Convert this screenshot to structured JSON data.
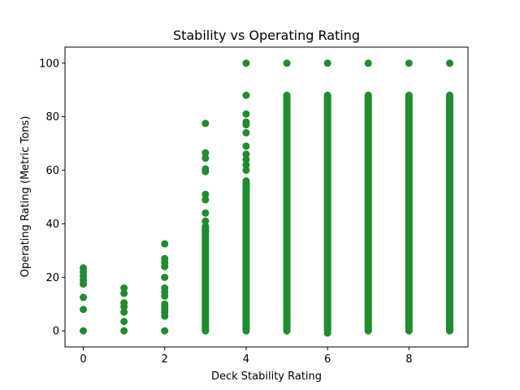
{
  "chart_data": {
    "type": "scatter",
    "title": "Stability vs Operating Rating",
    "xlabel": "Deck Stability Rating",
    "ylabel": "Operating Rating (Metric Tons)",
    "xlim": [
      -0.45,
      9.45
    ],
    "ylim": [
      -6,
      106
    ],
    "x_ticks": [
      0,
      2,
      4,
      6,
      8
    ],
    "y_ticks": [
      0,
      20,
      40,
      60,
      80,
      100
    ],
    "grid": false,
    "marker_color": "#1f8c2e",
    "series": [
      {
        "points": [
          [
            0,
            0
          ],
          [
            0,
            8
          ],
          [
            0,
            12.5
          ],
          [
            0,
            17.5
          ],
          [
            0,
            19
          ],
          [
            0,
            20.5
          ],
          [
            0,
            22
          ],
          [
            0,
            23.5
          ],
          [
            1,
            0
          ],
          [
            1,
            3.5
          ],
          [
            1,
            7
          ],
          [
            1,
            9
          ],
          [
            1,
            10.5
          ],
          [
            1,
            14
          ],
          [
            1,
            16
          ],
          [
            2,
            0
          ],
          [
            2,
            5.5
          ],
          [
            2,
            7
          ],
          [
            2,
            8
          ],
          [
            2,
            9
          ],
          [
            2,
            10
          ],
          [
            2,
            13
          ],
          [
            2,
            14.5
          ],
          [
            2,
            16
          ],
          [
            2,
            20
          ],
          [
            2,
            24
          ],
          [
            2,
            25.5
          ],
          [
            2,
            27
          ],
          [
            2,
            32.5
          ],
          [
            3,
            77.5
          ],
          [
            3,
            66.5
          ],
          [
            3,
            64.5
          ],
          [
            3,
            60.5
          ],
          [
            3,
            59.5
          ],
          [
            3,
            51
          ],
          [
            3,
            49
          ],
          [
            3,
            44
          ],
          [
            3,
            41
          ],
          [
            4,
            100
          ],
          [
            4,
            88
          ],
          [
            4,
            81
          ],
          [
            4,
            78
          ],
          [
            4,
            77
          ],
          [
            4,
            74
          ],
          [
            4,
            69
          ],
          [
            4,
            66
          ],
          [
            4,
            64
          ],
          [
            4,
            62
          ],
          [
            4,
            60
          ],
          [
            4,
            56
          ],
          [
            5,
            100
          ],
          [
            6,
            100
          ],
          [
            7,
            100
          ],
          [
            8,
            100
          ],
          [
            9,
            100
          ],
          [
            6,
            -0.8
          ]
        ],
        "ranges": [
          {
            "x": 3,
            "y_min": 0,
            "y_max": 39
          },
          {
            "x": 4,
            "y_min": 0,
            "y_max": 55
          },
          {
            "x": 5,
            "y_min": 0,
            "y_max": 88
          },
          {
            "x": 6,
            "y_min": 0,
            "y_max": 88
          },
          {
            "x": 7,
            "y_min": 0,
            "y_max": 88
          },
          {
            "x": 8,
            "y_min": 0,
            "y_max": 88
          },
          {
            "x": 9,
            "y_min": 0,
            "y_max": 88
          }
        ]
      }
    ]
  }
}
